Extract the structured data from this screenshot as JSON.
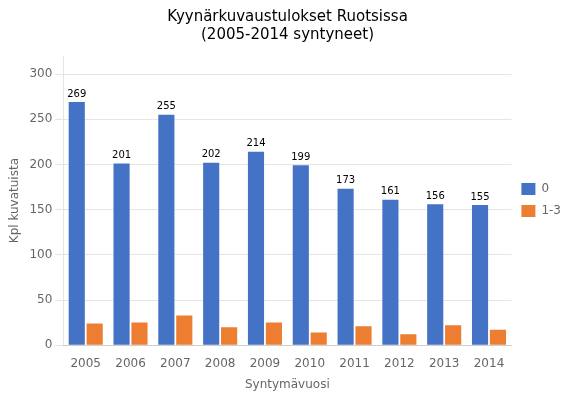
{
  "chart_data": {
    "type": "bar",
    "title": "Kyynärkuvaustulokset Ruotsissa\n(2005-2014 syntyneet)",
    "xlabel": "Syntymävuosi",
    "ylabel": "Kpl kuvatuista",
    "categories": [
      2005,
      2006,
      2007,
      2008,
      2009,
      2010,
      2011,
      2012,
      2013,
      2014
    ],
    "series": [
      {
        "name": "0",
        "color": "#4472C4",
        "values": [
          269,
          201,
          255,
          202,
          214,
          199,
          173,
          161,
          156,
          155
        ],
        "data_labels": true
      },
      {
        "name": "1-3",
        "color": "#ED7D31",
        "values": [
          24,
          25,
          33,
          20,
          25,
          14,
          21,
          12,
          22,
          17
        ]
      }
    ],
    "ylim": [
      0,
      320
    ],
    "yticks": [
      0,
      50,
      100,
      150,
      200,
      250,
      300
    ],
    "grid": true,
    "legend": "right"
  }
}
